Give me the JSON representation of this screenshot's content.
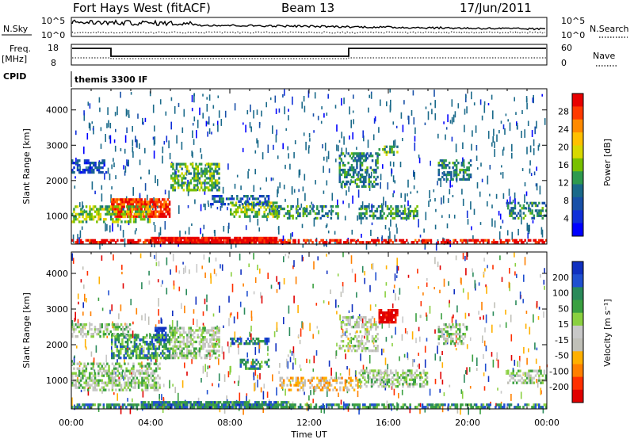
{
  "header": {
    "station": "Fort Hays West (fitACF)",
    "beam": "Beam 13",
    "date": "17/Jun/2011"
  },
  "strip": {
    "nsky_label": "N.Sky",
    "nsky_ticks": [
      "10^5",
      "10^0"
    ],
    "nsearch_label": "N.Search",
    "nsearch_ticks": [
      "10^5",
      "10^0"
    ],
    "freq_label": "Freq.",
    "freq_unit": "[MHz]",
    "freq_ticks": [
      "18",
      "8"
    ],
    "nave_label": "Nave",
    "nave_ticks": [
      "60",
      "0"
    ],
    "cpid_label": "CPID",
    "cpid_value": "themis 3300 IF"
  },
  "chart_data": [
    {
      "type": "heatmap",
      "name": "power",
      "ylabel": "Slant Range [km]",
      "yticks": [
        1000,
        2000,
        3000,
        4000
      ],
      "ylim": [
        200,
        4600
      ],
      "xlim": [
        0,
        24
      ],
      "colorbar": {
        "label": "Power [dB]",
        "ticks": [
          "28",
          "24",
          "20",
          "16",
          "12",
          "8",
          "4"
        ],
        "colors": [
          "#e80000",
          "#ff3a00",
          "#ff8a00",
          "#ffc000",
          "#d8d800",
          "#78c000",
          "#2e9a4e",
          "#1a6a8a",
          "#1850a8",
          "#1030d8",
          "#0000ff"
        ]
      },
      "features": [
        {
          "t0": 0.0,
          "t1": 24.0,
          "r0": 220,
          "r1": 330,
          "level": 0.95,
          "density": 0.55
        },
        {
          "t0": 4.0,
          "t1": 10.4,
          "r0": 220,
          "r1": 400,
          "level": 1.0,
          "density": 0.9
        },
        {
          "t0": 2.0,
          "t1": 5.0,
          "r0": 950,
          "r1": 1500,
          "level": 0.9,
          "density": 0.8
        },
        {
          "t0": 0.0,
          "t1": 4.0,
          "r0": 800,
          "r1": 1300,
          "level": 0.5,
          "density": 0.55
        },
        {
          "t0": 5.0,
          "t1": 7.5,
          "r0": 1700,
          "r1": 2500,
          "level": 0.45,
          "density": 0.55
        },
        {
          "t0": 0.0,
          "t1": 1.8,
          "r0": 2200,
          "r1": 2600,
          "level": 0.2,
          "density": 0.55
        },
        {
          "t0": 8.0,
          "t1": 10.5,
          "r0": 950,
          "r1": 1400,
          "level": 0.5,
          "density": 0.6
        },
        {
          "t0": 7.0,
          "t1": 10.0,
          "r0": 1300,
          "r1": 1600,
          "level": 0.25,
          "density": 0.5
        },
        {
          "t0": 13.5,
          "t1": 15.5,
          "r0": 1800,
          "r1": 2800,
          "level": 0.35,
          "density": 0.45
        },
        {
          "t0": 14.5,
          "t1": 17.5,
          "r0": 900,
          "r1": 1300,
          "level": 0.4,
          "density": 0.5
        },
        {
          "t0": 18.5,
          "t1": 20.2,
          "r0": 2000,
          "r1": 2600,
          "level": 0.35,
          "density": 0.45
        },
        {
          "t0": 22.0,
          "t1": 24.0,
          "r0": 900,
          "r1": 1400,
          "level": 0.35,
          "density": 0.5
        },
        {
          "t0": 10.0,
          "t1": 13.5,
          "r0": 900,
          "r1": 1300,
          "level": 0.4,
          "density": 0.4
        },
        {
          "t0": 15.5,
          "t1": 16.5,
          "r0": 2700,
          "r1": 3000,
          "level": 0.45,
          "density": 0.5
        }
      ]
    },
    {
      "type": "heatmap",
      "name": "velocity",
      "ylabel": "Slant Range [km]",
      "yticks": [
        1000,
        2000,
        3000,
        4000
      ],
      "ylim": [
        200,
        4600
      ],
      "xlim": [
        0,
        24
      ],
      "xticks": [
        "00:00",
        "04:00",
        "08:00",
        "12:00",
        "16:00",
        "20:00",
        "00:00"
      ],
      "xlabel": "Time UT",
      "colorbar": {
        "label": "Velocity [m s⁻¹]",
        "ticks": [
          "200",
          "100",
          "50",
          "15",
          "-15",
          "-50",
          "-100",
          "-200"
        ],
        "colors": [
          "#1030c0",
          "#2050d0",
          "#2a8a5a",
          "#3aa040",
          "#8ad040",
          "#c8c8c8",
          "#c0c0b8",
          "#ffb000",
          "#ff8000",
          "#ff3000",
          "#e00000"
        ]
      },
      "features": [
        {
          "t0": 0.0,
          "t1": 24.0,
          "r0": 220,
          "r1": 350,
          "level": 0.75,
          "density": 0.6
        },
        {
          "t0": 3.5,
          "t1": 11.0,
          "r0": 220,
          "r1": 420,
          "level": 0.78,
          "density": 0.8
        },
        {
          "t0": 4.2,
          "t1": 4.8,
          "r0": 2100,
          "r1": 2500,
          "level": 1.0,
          "density": 0.9
        },
        {
          "t0": 2.0,
          "t1": 5.0,
          "r0": 1600,
          "r1": 2300,
          "level": 0.72,
          "density": 0.6
        },
        {
          "t0": 0.0,
          "t1": 4.5,
          "r0": 700,
          "r1": 1500,
          "level": 0.55,
          "density": 0.55
        },
        {
          "t0": 0.0,
          "t1": 3.0,
          "r0": 2200,
          "r1": 2600,
          "level": 0.56,
          "density": 0.5
        },
        {
          "t0": 5.0,
          "t1": 7.5,
          "r0": 1600,
          "r1": 2500,
          "level": 0.55,
          "density": 0.55
        },
        {
          "t0": 8.5,
          "t1": 10.0,
          "r0": 1300,
          "r1": 1600,
          "level": 0.75,
          "density": 0.55
        },
        {
          "t0": 8.0,
          "t1": 10.0,
          "r0": 2000,
          "r1": 2200,
          "level": 0.8,
          "density": 0.6
        },
        {
          "t0": 10.5,
          "t1": 14.5,
          "r0": 700,
          "r1": 1100,
          "level": 0.35,
          "density": 0.45
        },
        {
          "t0": 15.5,
          "t1": 16.5,
          "r0": 2600,
          "r1": 3000,
          "level": 0.02,
          "density": 0.85
        },
        {
          "t0": 13.5,
          "t1": 15.5,
          "r0": 1800,
          "r1": 2800,
          "level": 0.5,
          "density": 0.4
        },
        {
          "t0": 14.5,
          "t1": 18.0,
          "r0": 800,
          "r1": 1300,
          "level": 0.55,
          "density": 0.5
        },
        {
          "t0": 18.5,
          "t1": 20.0,
          "r0": 2000,
          "r1": 2600,
          "level": 0.55,
          "density": 0.45
        },
        {
          "t0": 22.0,
          "t1": 24.0,
          "r0": 900,
          "r1": 1300,
          "level": 0.55,
          "density": 0.5
        }
      ]
    }
  ]
}
